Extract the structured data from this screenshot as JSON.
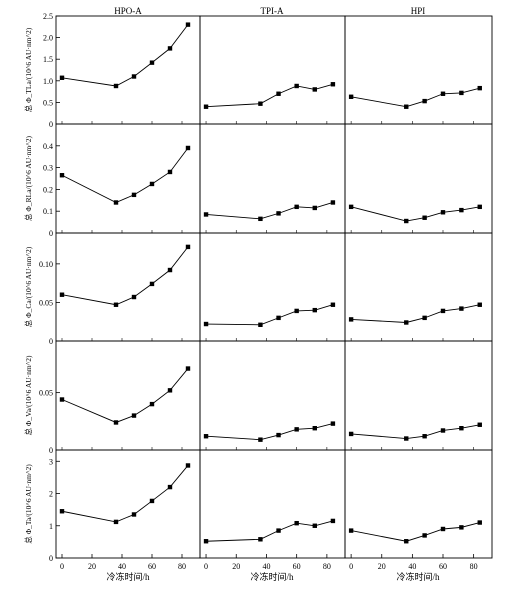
{
  "figure": {
    "xlabel": "冷冻时间/h",
    "column_titles": [
      "HPO-A",
      "TPI-A",
      "HPI"
    ],
    "row_ylabels": [
      "总 Φ_TLa/(10^6 AU·nm^2)",
      "总 Φ_RLa/(10^6 AU·nm^2)",
      "总 Φ_Ca/(10^6 AU·nm^2)",
      "总 Φ_Va/(10^6 AU·nm^2)",
      "总 Φ_Ta/(10^6 AU·nm^2)"
    ],
    "x_ticks": [
      0,
      20,
      40,
      60,
      80
    ]
  },
  "chart_data": [
    {
      "type": "line",
      "row": 0,
      "ylabel": "总 Φ_TLa/(10^6 AU·nm^2)",
      "ylim": [
        0,
        2.5
      ],
      "y_ticks": [
        0,
        0.5,
        1.0,
        1.5,
        2.0,
        2.5
      ],
      "y_tick_labels": [
        "0",
        "0.5",
        "1.0",
        "1.5",
        "2.0",
        "2.5"
      ],
      "x": [
        0,
        36,
        48,
        60,
        72,
        84
      ],
      "series": [
        {
          "panel": "HPO-A",
          "values": [
            1.07,
            0.88,
            1.1,
            1.42,
            1.75,
            2.3
          ]
        },
        {
          "panel": "TPI-A",
          "values": [
            0.4,
            0.47,
            0.7,
            0.88,
            0.8,
            0.92
          ]
        },
        {
          "panel": "HPI",
          "values": [
            0.63,
            0.4,
            0.53,
            0.7,
            0.72,
            0.83
          ]
        }
      ]
    },
    {
      "type": "line",
      "row": 1,
      "ylabel": "总 Φ_RLa/(10^6 AU·nm^2)",
      "ylim": [
        0,
        0.5
      ],
      "y_ticks": [
        0,
        0.1,
        0.2,
        0.3,
        0.4
      ],
      "y_tick_labels": [
        "0",
        "0.1",
        "0.2",
        "0.3",
        "0.4"
      ],
      "x": [
        0,
        36,
        48,
        60,
        72,
        84
      ],
      "series": [
        {
          "panel": "HPO-A",
          "values": [
            0.265,
            0.14,
            0.175,
            0.225,
            0.28,
            0.39
          ]
        },
        {
          "panel": "TPI-A",
          "values": [
            0.085,
            0.065,
            0.09,
            0.12,
            0.115,
            0.14
          ]
        },
        {
          "panel": "HPI",
          "values": [
            0.12,
            0.055,
            0.07,
            0.095,
            0.105,
            0.12
          ]
        }
      ]
    },
    {
      "type": "line",
      "row": 2,
      "ylabel": "总 Φ_Ca/(10^6 AU·nm^2)",
      "ylim": [
        0,
        0.14
      ],
      "y_ticks": [
        0,
        0.05,
        0.1
      ],
      "y_tick_labels": [
        "0",
        "0.05",
        "0.10"
      ],
      "x": [
        0,
        36,
        48,
        60,
        72,
        84
      ],
      "series": [
        {
          "panel": "HPO-A",
          "values": [
            0.06,
            0.047,
            0.057,
            0.074,
            0.092,
            0.122
          ]
        },
        {
          "panel": "TPI-A",
          "values": [
            0.022,
            0.021,
            0.03,
            0.039,
            0.04,
            0.047
          ]
        },
        {
          "panel": "HPI",
          "values": [
            0.028,
            0.024,
            0.03,
            0.039,
            0.042,
            0.047
          ]
        }
      ]
    },
    {
      "type": "line",
      "row": 3,
      "ylabel": "总 Φ_Va/(10^6 AU·nm^2)",
      "ylim": [
        0,
        0.095
      ],
      "y_ticks": [
        0,
        0.05
      ],
      "y_tick_labels": [
        "0",
        "0.05"
      ],
      "x": [
        0,
        36,
        48,
        60,
        72,
        84
      ],
      "series": [
        {
          "panel": "HPO-A",
          "values": [
            0.044,
            0.024,
            0.03,
            0.04,
            0.052,
            0.071
          ]
        },
        {
          "panel": "TPI-A",
          "values": [
            0.012,
            0.009,
            0.013,
            0.018,
            0.019,
            0.023
          ]
        },
        {
          "panel": "HPI",
          "values": [
            0.014,
            0.01,
            0.012,
            0.017,
            0.019,
            0.022
          ]
        }
      ]
    },
    {
      "type": "line",
      "row": 4,
      "ylabel": "总 Φ_Ta/(10^6 AU·nm^2)",
      "ylim": [
        0,
        3.35
      ],
      "y_ticks": [
        0,
        1,
        2,
        3
      ],
      "y_tick_labels": [
        "0",
        "1",
        "2",
        "3"
      ],
      "x": [
        0,
        36,
        48,
        60,
        72,
        84
      ],
      "series": [
        {
          "panel": "HPO-A",
          "values": [
            1.45,
            1.12,
            1.35,
            1.77,
            2.2,
            2.87
          ]
        },
        {
          "panel": "TPI-A",
          "values": [
            0.52,
            0.58,
            0.85,
            1.08,
            1.0,
            1.15
          ]
        },
        {
          "panel": "HPI",
          "values": [
            0.85,
            0.52,
            0.7,
            0.9,
            0.95,
            1.1
          ]
        }
      ]
    }
  ]
}
